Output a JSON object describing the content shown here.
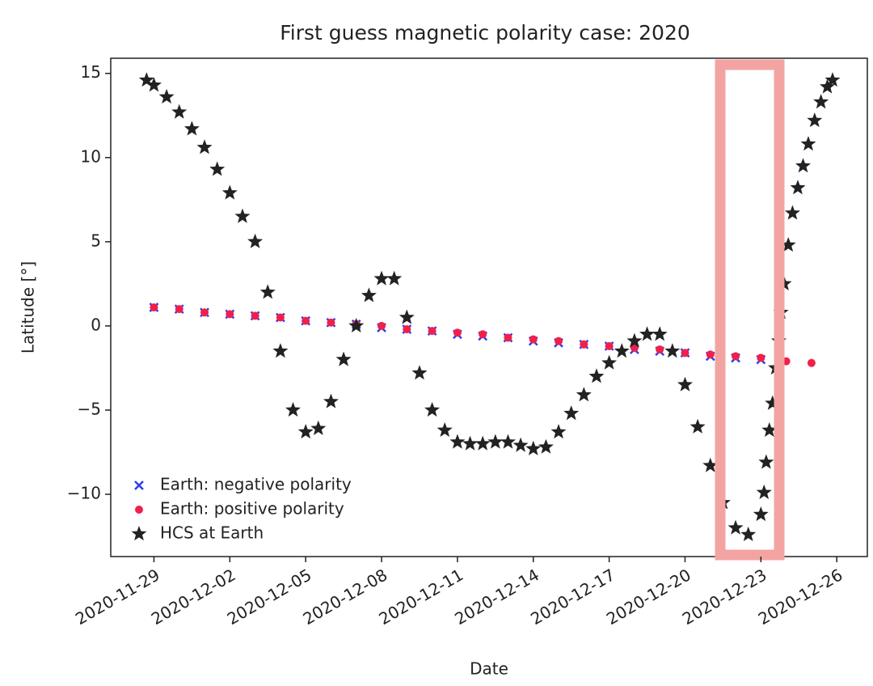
{
  "chart_data": {
    "type": "scatter",
    "title": "First guess magnetic polarity case: 2020",
    "xlabel": "Date",
    "ylabel": "Latitude [°]",
    "xlim": [
      "2020-11-27T07:00",
      "2020-12-27T05:00"
    ],
    "ylim": [
      -13.7,
      15.9
    ],
    "xticks": [
      "2020-11-29",
      "2020-12-02",
      "2020-12-05",
      "2020-12-08",
      "2020-12-11",
      "2020-12-14",
      "2020-12-17",
      "2020-12-20",
      "2020-12-23",
      "2020-12-26"
    ],
    "yticks": [
      {
        "value": -10,
        "label": "−10"
      },
      {
        "value": -5,
        "label": "−5"
      },
      0,
      5,
      10,
      15
    ],
    "legend": "lower left",
    "series": [
      {
        "name": "Earth: negative polarity",
        "color": "#2b3ff0",
        "marker": "x",
        "x": [
          "2020-11-29",
          "2020-11-30",
          "2020-12-01",
          "2020-12-02",
          "2020-12-03",
          "2020-12-04",
          "2020-12-05",
          "2020-12-06",
          "2020-12-07",
          "2020-12-08",
          "2020-12-09",
          "2020-12-10",
          "2020-12-11",
          "2020-12-12",
          "2020-12-13",
          "2020-12-14",
          "2020-12-15",
          "2020-12-16",
          "2020-12-17",
          "2020-12-18",
          "2020-12-19",
          "2020-12-20",
          "2020-12-21",
          "2020-12-22",
          "2020-12-23"
        ],
        "values": [
          1.1,
          1.0,
          0.8,
          0.7,
          0.6,
          0.5,
          0.3,
          0.2,
          0.1,
          -0.1,
          -0.2,
          -0.3,
          -0.5,
          -0.6,
          -0.7,
          -0.9,
          -1.0,
          -1.1,
          -1.2,
          -1.4,
          -1.5,
          -1.6,
          -1.8,
          -1.9,
          -2.0
        ]
      },
      {
        "name": "Earth: positive polarity",
        "color": "#f0204a",
        "marker": "o",
        "x": [
          "2020-11-29",
          "2020-11-30",
          "2020-12-01",
          "2020-12-02",
          "2020-12-03",
          "2020-12-04",
          "2020-12-05",
          "2020-12-06",
          "2020-12-07",
          "2020-12-08",
          "2020-12-09",
          "2020-12-10",
          "2020-12-11",
          "2020-12-12",
          "2020-12-13",
          "2020-12-14",
          "2020-12-15",
          "2020-12-16",
          "2020-12-17",
          "2020-12-18",
          "2020-12-19",
          "2020-12-20",
          "2020-12-21",
          "2020-12-22",
          "2020-12-23",
          "2020-12-24",
          "2020-12-25"
        ],
        "values": [
          1.1,
          1.0,
          0.8,
          0.7,
          0.6,
          0.5,
          0.3,
          0.2,
          0.1,
          0.0,
          -0.2,
          -0.3,
          -0.4,
          -0.5,
          -0.7,
          -0.8,
          -0.9,
          -1.1,
          -1.2,
          -1.3,
          -1.4,
          -1.6,
          -1.7,
          -1.8,
          -1.9,
          -2.1,
          -2.2
        ]
      },
      {
        "name": "HCS at Earth",
        "color": "#222222",
        "marker": "*",
        "x": [
          "2020-11-28T17:00",
          "2020-11-29T00:00",
          "2020-11-29T12:00",
          "2020-11-30T00:00",
          "2020-11-30T12:00",
          "2020-12-01T00:00",
          "2020-12-01T12:00",
          "2020-12-02T00:00",
          "2020-12-02T12:00",
          "2020-12-03T00:00",
          "2020-12-03T12:00",
          "2020-12-04T00:00",
          "2020-12-04T12:00",
          "2020-12-05T00:00",
          "2020-12-05T12:00",
          "2020-12-06T00:00",
          "2020-12-06T12:00",
          "2020-12-07T00:00",
          "2020-12-07T12:00",
          "2020-12-08T00:00",
          "2020-12-08T12:00",
          "2020-12-09T00:00",
          "2020-12-09T12:00",
          "2020-12-10T00:00",
          "2020-12-10T12:00",
          "2020-12-11T00:00",
          "2020-12-11T12:00",
          "2020-12-12T00:00",
          "2020-12-12T12:00",
          "2020-12-13T00:00",
          "2020-12-13T12:00",
          "2020-12-14T00:00",
          "2020-12-14T12:00",
          "2020-12-15T00:00",
          "2020-12-15T12:00",
          "2020-12-16T00:00",
          "2020-12-16T12:00",
          "2020-12-17T00:00",
          "2020-12-17T12:00",
          "2020-12-18T00:00",
          "2020-12-18T12:00",
          "2020-12-19T00:00",
          "2020-12-19T12:00",
          "2020-12-20T00:00",
          "2020-12-20T12:00",
          "2020-12-21T00:00",
          "2020-12-21T12:00",
          "2020-12-22T00:00",
          "2020-12-22T12:00",
          "2020-12-23T00:00",
          "2020-12-23T03:00",
          "2020-12-23T05:00",
          "2020-12-23T08:00",
          "2020-12-23T11:00",
          "2020-12-23T14:00",
          "2020-12-23T17:00",
          "2020-12-23T19:00",
          "2020-12-23T22:00",
          "2020-12-24T02:00",
          "2020-12-24T06:00",
          "2020-12-24T11:00",
          "2020-12-24T16:00",
          "2020-12-24T21:00",
          "2020-12-25T03:00",
          "2020-12-25T09:00",
          "2020-12-25T15:00",
          "2020-12-25T20:00"
        ],
        "values": [
          14.6,
          14.3,
          13.6,
          12.7,
          11.7,
          10.6,
          9.3,
          7.9,
          6.5,
          5.0,
          2.0,
          -1.5,
          -5.0,
          -6.3,
          -6.1,
          -4.5,
          -2.0,
          0.0,
          1.8,
          2.8,
          2.8,
          0.5,
          -2.8,
          -5.0,
          -6.2,
          -6.9,
          -7.0,
          -7.0,
          -6.9,
          -6.9,
          -7.1,
          -7.3,
          -7.2,
          -6.3,
          -5.2,
          -4.1,
          -3.0,
          -2.2,
          -1.5,
          -0.9,
          -0.5,
          -0.5,
          -1.5,
          -3.5,
          -6.0,
          -8.3,
          -10.5,
          -12.0,
          -12.4,
          -11.2,
          -9.9,
          -8.1,
          -6.2,
          -4.6,
          -2.5,
          -0.9,
          0.8,
          2.5,
          4.8,
          6.7,
          8.2,
          9.5,
          10.8,
          12.2,
          13.3,
          14.2,
          14.6
        ]
      }
    ]
  }
}
